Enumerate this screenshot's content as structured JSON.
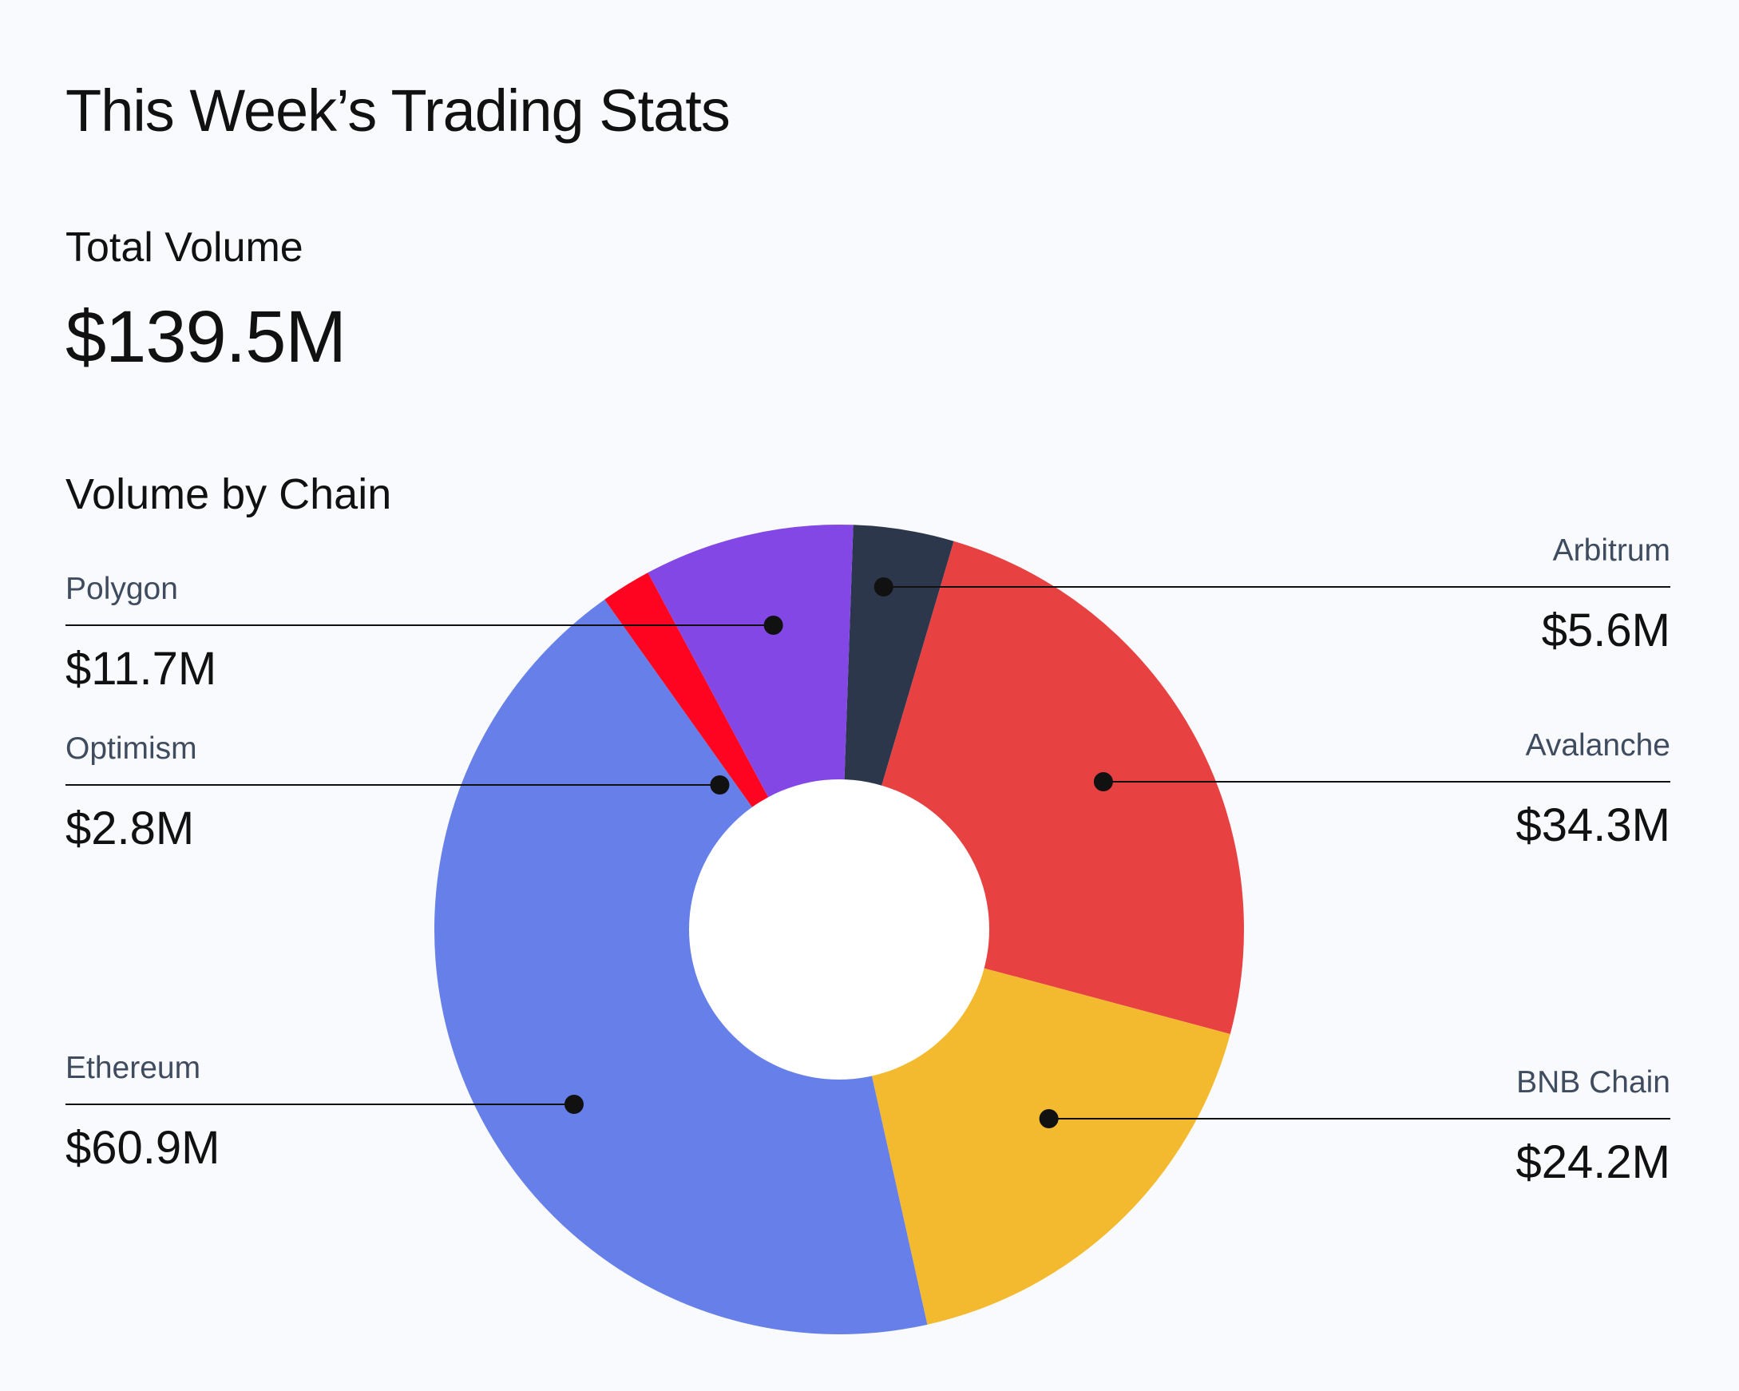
{
  "title": "This Week’s Trading Stats",
  "total": {
    "label": "Total Volume",
    "value": "$139.5M"
  },
  "section_label": "Volume by Chain",
  "colors": {
    "background": "#f8fafd",
    "Ethereum": "#667fe9",
    "Optimism": "#ff0420",
    "Polygon": "#8247e5",
    "Arbitrum": "#2d374b",
    "Avalanche": "#e84142",
    "BNB Chain": "#f3ba2f"
  },
  "chart_data": {
    "type": "pie",
    "title": "Volume by Chain",
    "unit": "$M",
    "categories": [
      "Arbitrum",
      "Avalanche",
      "BNB Chain",
      "Ethereum",
      "Optimism",
      "Polygon"
    ],
    "values": [
      5.6,
      34.3,
      24.2,
      60.9,
      2.8,
      11.7
    ],
    "labels": [
      "$5.6M",
      "$34.3M",
      "$24.2M",
      "$60.9M",
      "$2.8M",
      "$11.7M"
    ],
    "total": 139.5,
    "style": "donut"
  }
}
